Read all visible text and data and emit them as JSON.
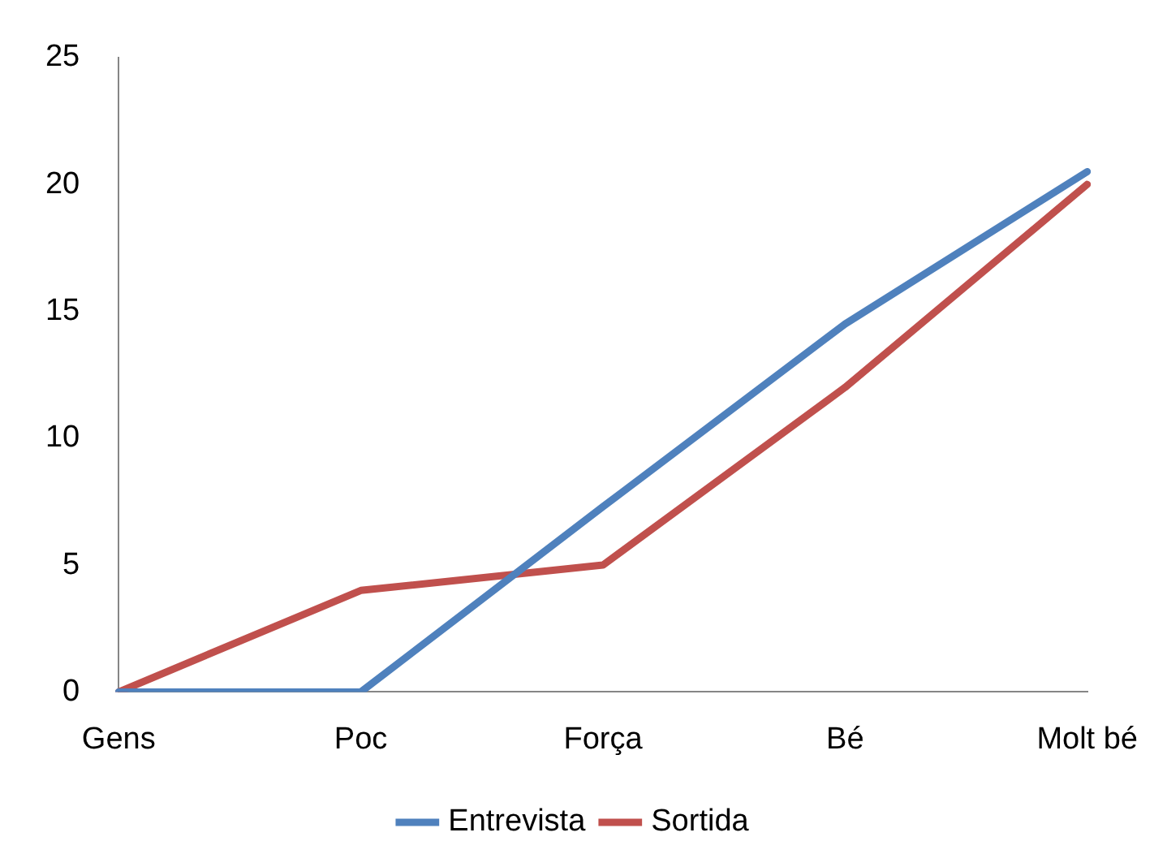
{
  "chart_data": {
    "type": "line",
    "categories": [
      "Gens",
      "Poc",
      "Força",
      "Bé",
      "Molt bé"
    ],
    "series": [
      {
        "name": "Entrevista",
        "color": "#4f81bd",
        "values": [
          0,
          0,
          7.3,
          14.5,
          20.5
        ]
      },
      {
        "name": "Sortida",
        "color": "#c0504d",
        "values": [
          0,
          4,
          5,
          12,
          20
        ]
      }
    ],
    "ylim": [
      0,
      25
    ],
    "yticks": [
      0,
      5,
      10,
      15,
      20,
      25
    ],
    "legend": "bottom"
  }
}
